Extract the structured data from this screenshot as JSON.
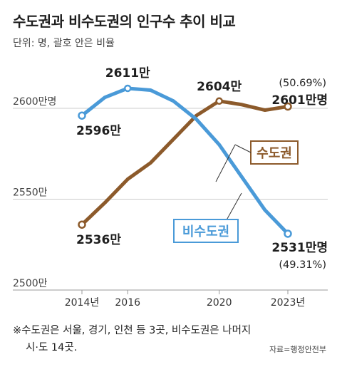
{
  "title": "수도권과 비수도권의 인구수 추이 비교",
  "subtitle": "단위: 명, 괄호 안은 비율",
  "footnote_line1": "※수도권은 서울, 경기, 인천 등 3곳, 비수도권은 나머지",
  "footnote_line2": "시·도 14곳.",
  "source": "자료=행정안전부",
  "colors": {
    "capital": "#8c5a2b",
    "noncapital": "#4a9ad8",
    "grid": "#cccccc"
  },
  "chart_data": {
    "type": "line",
    "x": [
      2014,
      2015,
      2016,
      2017,
      2018,
      2019,
      2020,
      2021,
      2022,
      2023
    ],
    "x_tick_labels": [
      {
        "x": 2014,
        "label": "2014년"
      },
      {
        "x": 2016,
        "label": "2016"
      },
      {
        "x": 2020,
        "label": "2020"
      },
      {
        "x": 2023,
        "label": "2023년"
      }
    ],
    "y_ticks": [
      {
        "value": 2600,
        "label": "2600만명"
      },
      {
        "value": 2550,
        "label": "2550만"
      },
      {
        "value": 2500,
        "label": "2500만"
      }
    ],
    "ylim": [
      2500,
      2620
    ],
    "unit": "만명",
    "series": [
      {
        "name": "수도권",
        "key": "capital",
        "values": [
          2536,
          2548,
          2561,
          2570,
          2583,
          2596,
          2604,
          2602,
          2599,
          2601
        ],
        "annotations": [
          {
            "index": 0,
            "label": "2536만"
          },
          {
            "index": 6,
            "label": "2604만"
          },
          {
            "index": 9,
            "label": "2601만명",
            "sublabel": "(50.69%)"
          }
        ]
      },
      {
        "name": "비수도권",
        "key": "noncapital",
        "values": [
          2596,
          2606,
          2611,
          2610,
          2604,
          2594,
          2580,
          2562,
          2544,
          2531
        ],
        "annotations": [
          {
            "index": 0,
            "label": "2596만"
          },
          {
            "index": 2,
            "label": "2611만"
          },
          {
            "index": 9,
            "label": "2531만명",
            "sublabel": "(49.31%)"
          }
        ]
      }
    ]
  }
}
